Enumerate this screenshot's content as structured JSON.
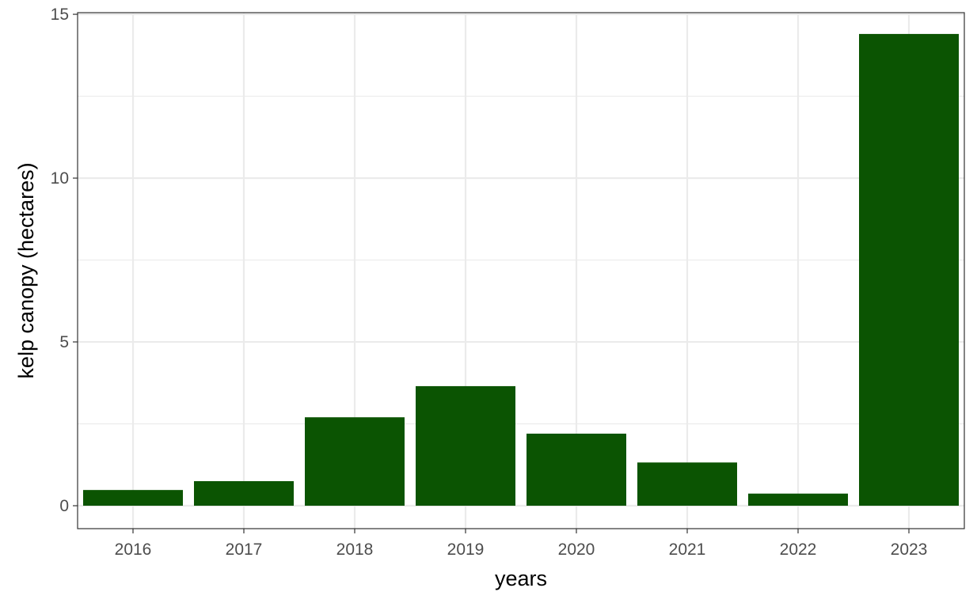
{
  "chart_data": {
    "type": "bar",
    "title": "",
    "xlabel": "years",
    "ylabel": "kelp canopy (hectares)",
    "categories": [
      "2016",
      "2017",
      "2018",
      "2019",
      "2020",
      "2021",
      "2022",
      "2023"
    ],
    "values": [
      0.48,
      0.75,
      2.7,
      3.65,
      2.2,
      1.32,
      0.37,
      14.4
    ],
    "ylim": [
      -0.7,
      15.05
    ],
    "yticks": [
      0,
      5,
      10,
      15
    ],
    "grid": true,
    "legend": "none",
    "colors": {
      "bar": "#0b5402",
      "grid": "#ebebeb",
      "panel_border": "#333333",
      "tick_text": "#4d4d4d"
    }
  }
}
